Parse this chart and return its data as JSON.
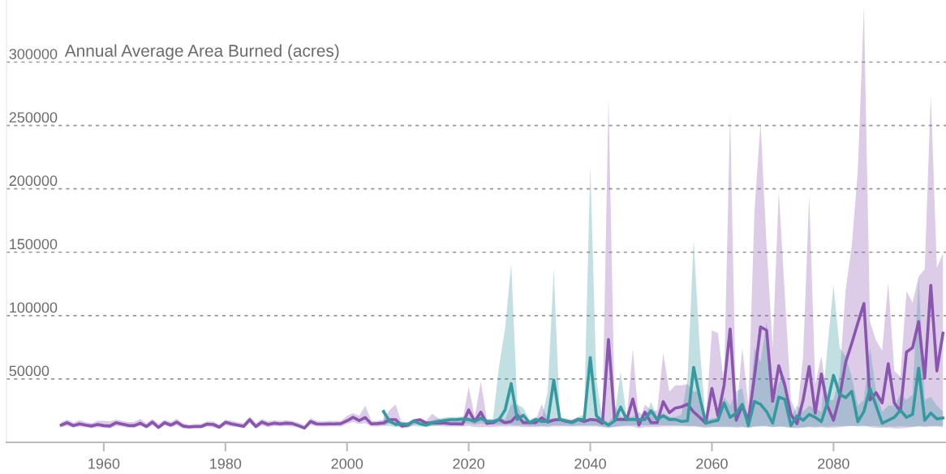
{
  "chart_data": {
    "type": "line",
    "title": "Annual Average Area Burned (acres)",
    "xlim": [
      1944,
      2098.5
    ],
    "xticks": [
      1960,
      1980,
      2000,
      2020,
      2040,
      2060,
      2080
    ],
    "ylim": [
      0,
      349000
    ],
    "yticks": [
      50000,
      100000,
      150000,
      200000,
      250000,
      300000
    ],
    "grid": "y",
    "series": [
      {
        "color": "#8a55ae",
        "x": [
          1953,
          1954,
          1955,
          1956,
          1957,
          1958,
          1959,
          1960,
          1961,
          1962,
          1963,
          1964,
          1965,
          1966,
          1967,
          1968,
          1969,
          1970,
          1971,
          1972,
          1973,
          1974,
          1975,
          1976,
          1977,
          1978,
          1979,
          1980,
          1981,
          1982,
          1983,
          1984,
          1985,
          1986,
          1987,
          1988,
          1989,
          1990,
          1991,
          1992,
          1993,
          1994,
          1995,
          1996,
          1997,
          1998,
          1999,
          2000,
          2001,
          2002,
          2003,
          2004,
          2005,
          2006,
          2007,
          2008,
          2009,
          2010,
          2011,
          2012,
          2013,
          2014,
          2015,
          2016,
          2017,
          2018,
          2019,
          2020,
          2021,
          2022,
          2023,
          2024,
          2025,
          2026,
          2027,
          2028,
          2029,
          2030,
          2031,
          2032,
          2033,
          2034,
          2035,
          2036,
          2037,
          2038,
          2039,
          2040,
          2041,
          2042,
          2043,
          2044,
          2045,
          2046,
          2047,
          2048,
          2049,
          2050,
          2051,
          2052,
          2053,
          2054,
          2055,
          2056,
          2057,
          2058,
          2059,
          2060,
          2061,
          2062,
          2063,
          2064,
          2065,
          2066,
          2067,
          2068,
          2069,
          2070,
          2071,
          2072,
          2073,
          2074,
          2075,
          2076,
          2077,
          2078,
          2079,
          2080,
          2081,
          2082,
          2083,
          2084,
          2085,
          2086,
          2087,
          2088,
          2089,
          2090,
          2091,
          2092,
          2093,
          2094,
          2095,
          2096,
          2097,
          2098
        ],
        "values": [
          13600,
          15500,
          13200,
          14600,
          13600,
          12900,
          14100,
          13200,
          12900,
          15500,
          14400,
          13400,
          13200,
          15100,
          12500,
          16000,
          11800,
          15500,
          13600,
          16000,
          12900,
          12200,
          12500,
          12500,
          14400,
          14100,
          12000,
          15800,
          14600,
          13600,
          12700,
          17900,
          12500,
          16000,
          14100,
          15100,
          14600,
          15100,
          14800,
          13200,
          11300,
          16500,
          14600,
          14400,
          14600,
          14600,
          14800,
          17000,
          19800,
          17200,
          19600,
          14600,
          14800,
          15300,
          17900,
          17900,
          12900,
          13600,
          17000,
          17900,
          15300,
          15300,
          15300,
          15300,
          14600,
          14600,
          14400,
          25600,
          16500,
          23800,
          14900,
          15500,
          18000,
          15500,
          16500,
          21500,
          15500,
          15500,
          15500,
          19300,
          16000,
          17600,
          18000,
          16500,
          16000,
          18000,
          16500,
          18000,
          17600,
          14900,
          81200,
          18000,
          18000,
          18000,
          34200,
          13600,
          23800,
          15500,
          15500,
          32100,
          23400,
          27100,
          28000,
          30100,
          24000,
          19700,
          15100,
          42600,
          20800,
          44900,
          89500,
          17400,
          28900,
          17400,
          51800,
          91100,
          88400,
          32300,
          60500,
          44900,
          22000,
          14700,
          33400,
          59800,
          23100,
          54000,
          28900,
          17400,
          35700,
          63200,
          78100,
          94100,
          109500,
          33400,
          39200,
          31100,
          62100,
          31100,
          24300,
          71200,
          74700,
          95300,
          50600,
          123900,
          56300,
          86100
        ],
        "upper": [
          16000,
          18000,
          15500,
          17500,
          16000,
          15000,
          17000,
          17000,
          16500,
          18000,
          17000,
          16000,
          16000,
          18500,
          15000,
          18500,
          14500,
          18000,
          16000,
          18500,
          15000,
          14000,
          14500,
          14500,
          16500,
          16500,
          14000,
          18000,
          17000,
          16000,
          15000,
          20500,
          15000,
          18500,
          16500,
          17500,
          17000,
          17500,
          17000,
          15500,
          13500,
          19000,
          17000,
          16500,
          17000,
          17000,
          17000,
          21000,
          23000,
          21000,
          29000,
          17000,
          17000,
          18000,
          25500,
          29800,
          15000,
          16000,
          18000,
          18500,
          17000,
          22600,
          19000,
          16500,
          17000,
          18000,
          17000,
          43800,
          20000,
          48000,
          18000,
          17000,
          20000,
          18000,
          30000,
          30000,
          18000,
          17000,
          17000,
          30100,
          18000,
          19000,
          19000,
          18000,
          18000,
          20000,
          18000,
          19000,
          19000,
          18000,
          271300,
          30000,
          20000,
          20000,
          73700,
          16000,
          30000,
          25000,
          25000,
          70500,
          40000,
          45000,
          45000,
          46000,
          40000,
          40300,
          17000,
          88400,
          86100,
          46000,
          260100,
          20000,
          74700,
          28900,
          182300,
          252100,
          154800,
          74700,
          198300,
          115900,
          33400,
          21900,
          67800,
          194900,
          46000,
          68000,
          33400,
          33400,
          51800,
          120500,
          154800,
          214300,
          343700,
          95300,
          80400,
          72300,
          126200,
          56300,
          51800,
          119300,
          110100,
          130800,
          136500,
          273900,
          137600,
          149000
        ],
        "lower": [
          12000,
          13000,
          11500,
          12500,
          12000,
          11000,
          12000,
          11500,
          11000,
          13000,
          12500,
          11500,
          11500,
          13000,
          11000,
          13500,
          10500,
          13500,
          12000,
          13500,
          11000,
          10500,
          11000,
          11000,
          12500,
          12000,
          10500,
          13500,
          12500,
          12000,
          11000,
          15000,
          11000,
          13500,
          12000,
          13000,
          12500,
          13000,
          12500,
          11500,
          10000,
          14000,
          12500,
          12500,
          12500,
          12500,
          12500,
          14500,
          16000,
          14500,
          15000,
          12500,
          12500,
          13000,
          15000,
          14500,
          11000,
          11500,
          14000,
          15000,
          13000,
          13000,
          13000,
          12500,
          12500,
          12500,
          12500,
          13000,
          12000,
          12000,
          12000,
          12000,
          12500,
          12500,
          12500,
          12500,
          12000,
          12000,
          12000,
          12500,
          12000,
          12500,
          12500,
          12500,
          12500,
          12500,
          12500,
          12500,
          12500,
          12000,
          12000,
          12000,
          12500,
          12500,
          12500,
          11000,
          12000,
          12000,
          12000,
          12500,
          12500,
          12500,
          12500,
          12500,
          12500,
          12000,
          11500,
          12000,
          12000,
          12000,
          12000,
          11500,
          12000,
          11500,
          12500,
          13000,
          13000,
          12000,
          12500,
          12000,
          11500,
          11000,
          11500,
          12000,
          11500,
          12000,
          11500,
          11500,
          12000,
          12500,
          13000,
          13000,
          13500,
          12000,
          11500,
          11500,
          11500,
          11000,
          11000,
          11500,
          12000,
          12500,
          12000,
          12500,
          12500,
          12000
        ]
      },
      {
        "color": "#36999f",
        "x": [
          2006,
          2007,
          2008,
          2009,
          2010,
          2011,
          2012,
          2013,
          2014,
          2015,
          2016,
          2017,
          2018,
          2019,
          2020,
          2021,
          2022,
          2023,
          2024,
          2025,
          2026,
          2027,
          2028,
          2029,
          2030,
          2031,
          2032,
          2033,
          2034,
          2035,
          2036,
          2037,
          2038,
          2039,
          2040,
          2041,
          2042,
          2043,
          2044,
          2045,
          2046,
          2047,
          2048,
          2049,
          2050,
          2051,
          2052,
          2053,
          2054,
          2055,
          2056,
          2057,
          2058,
          2059,
          2060,
          2061,
          2062,
          2063,
          2064,
          2065,
          2066,
          2067,
          2068,
          2069,
          2070,
          2071,
          2072,
          2073,
          2074,
          2075,
          2076,
          2077,
          2078,
          2079,
          2080,
          2081,
          2082,
          2083,
          2084,
          2085,
          2086,
          2087,
          2088,
          2089,
          2090,
          2091,
          2092,
          2093,
          2094,
          2095,
          2096,
          2097,
          2098
        ],
        "values": [
          24300,
          16500,
          14100,
          14600,
          14100,
          16700,
          14600,
          13600,
          15500,
          16500,
          17200,
          17900,
          17900,
          18400,
          18000,
          16500,
          19000,
          16500,
          16500,
          18000,
          25600,
          46300,
          18000,
          21400,
          15500,
          18000,
          16500,
          16500,
          49100,
          18000,
          17000,
          15500,
          18000,
          18000,
          66900,
          21000,
          16500,
          13600,
          17000,
          27900,
          18000,
          18000,
          18000,
          18000,
          25000,
          18000,
          21000,
          18000,
          18000,
          16500,
          17000,
          59200,
          35700,
          15100,
          16300,
          17400,
          31100,
          19700,
          23100,
          30000,
          13300,
          32300,
          30000,
          24300,
          15100,
          35700,
          33900,
          13300,
          20800,
          17400,
          22000,
          19700,
          16300,
          31100,
          52900,
          38000,
          35300,
          40300,
          16300,
          24300,
          42600,
          28900,
          15100,
          17400,
          19700,
          25400,
          19700,
          22000,
          58600,
          17400,
          23100,
          18500,
          19200
        ],
        "upper": [
          27000,
          19000,
          16000,
          16500,
          16000,
          18500,
          17000,
          15500,
          17500,
          18500,
          19500,
          20000,
          20000,
          20500,
          20000,
          18500,
          21000,
          18500,
          18500,
          60000,
          90000,
          141000,
          30000,
          27000,
          18000,
          20000,
          18500,
          40000,
          136700,
          20000,
          19000,
          17500,
          20000,
          22000,
          219000,
          50000,
          18500,
          16000,
          22000,
          55600,
          20000,
          20000,
          24000,
          20000,
          32000,
          20000,
          23000,
          20000,
          20000,
          22000,
          50000,
          160000,
          74700,
          17400,
          19000,
          19700,
          35700,
          28900,
          40300,
          42600,
          15100,
          74700,
          63200,
          95300,
          28900,
          47300,
          51800,
          19700,
          28900,
          24300,
          28900,
          26600,
          24300,
          74700,
          123900,
          74700,
          67800,
          51800,
          28900,
          33400,
          74700,
          40300,
          24300,
          28900,
          28900,
          37800,
          33400,
          37800,
          129600,
          33400,
          35700,
          28900,
          24300
        ],
        "lower": [
          13000,
          13000,
          12000,
          12000,
          12000,
          13000,
          12500,
          12000,
          13000,
          13500,
          14000,
          14500,
          14500,
          15000,
          15000,
          14000,
          15000,
          14000,
          14000,
          14000,
          14000,
          14000,
          13500,
          13500,
          13000,
          13000,
          13000,
          13000,
          13500,
          13500,
          13500,
          13000,
          13500,
          13500,
          13500,
          13500,
          12500,
          11000,
          12500,
          13000,
          13500,
          13500,
          13500,
          13500,
          13500,
          13500,
          13500,
          13500,
          13500,
          13500,
          13000,
          13000,
          12500,
          12500,
          12500,
          12500,
          12500,
          12500,
          12500,
          12500,
          11500,
          12500,
          12500,
          12500,
          12000,
          12500,
          12500,
          11500,
          12000,
          12000,
          12500,
          12500,
          12500,
          12500,
          13000,
          13000,
          13000,
          13000,
          12500,
          12500,
          13000,
          13000,
          12500,
          12500,
          12500,
          13000,
          12500,
          12500,
          13000,
          13000,
          13000,
          13000,
          13000
        ]
      }
    ]
  }
}
